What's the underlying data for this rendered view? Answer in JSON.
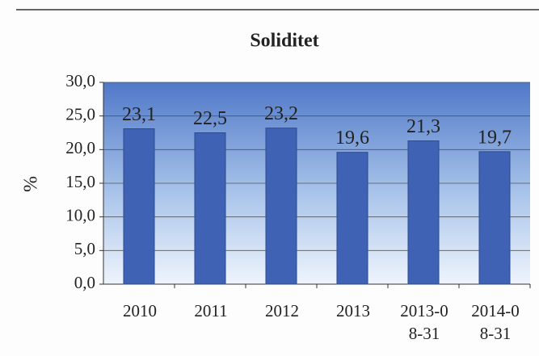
{
  "chart_data": {
    "type": "bar",
    "title": "Soliditet",
    "y_label": "%",
    "categories": [
      "2010",
      "2011",
      "2012",
      "2013",
      "2013-08-31",
      "2014-08-31"
    ],
    "values": [
      23.1,
      22.5,
      23.2,
      19.6,
      21.3,
      19.7
    ],
    "value_labels": [
      "23,1",
      "22,5",
      "23,2",
      "19,6",
      "21,3",
      "19,7"
    ],
    "color": "#3f62b4",
    "ylim": [
      0,
      30
    ],
    "yticks": [
      {
        "value": 0,
        "label": "0,0"
      },
      {
        "value": 5,
        "label": "5,0"
      },
      {
        "value": 10,
        "label": "10,0"
      },
      {
        "value": 15,
        "label": "15,0"
      },
      {
        "value": 20,
        "label": "20,0"
      },
      {
        "value": 25,
        "label": "25,0"
      },
      {
        "value": 30,
        "label": "30,0"
      }
    ],
    "grid": true
  }
}
